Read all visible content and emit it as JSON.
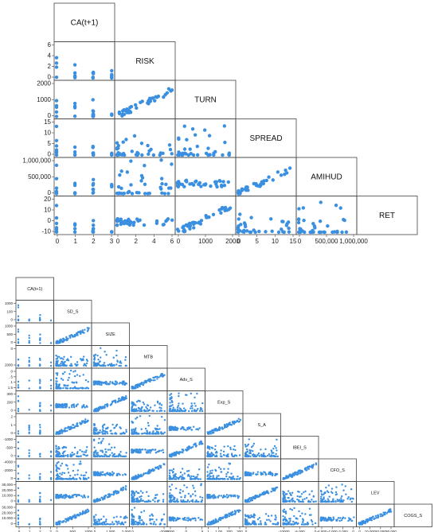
{
  "chart_data": [
    {
      "type": "scatter",
      "title": "",
      "variables": [
        "CA(t+1)",
        "RISK",
        "TURN",
        "SPREAD",
        "AMIHUD",
        "RET"
      ],
      "x_ticks": [
        [
          "0",
          "1",
          "2",
          "3"
        ],
        [
          "0",
          "2",
          "4",
          "6"
        ],
        [
          "0",
          "1000",
          "2000"
        ],
        [
          "0",
          "5",
          "10",
          "15"
        ],
        [
          "0",
          "500,000",
          "1,000,000"
        ]
      ],
      "y_ticks": [
        [
          "0",
          "2",
          "4",
          "6"
        ],
        [
          "0",
          "1000",
          "2000"
        ],
        [
          "0",
          "5",
          "10",
          "15"
        ],
        [
          "0",
          "500,000",
          "1,000,000"
        ],
        [
          "-10",
          "0",
          "10",
          "20"
        ]
      ],
      "ranges": [
        [
          -0.1,
          3
        ],
        [
          -0.3,
          6
        ],
        [
          -80,
          2400
        ],
        [
          -0.5,
          15
        ],
        [
          -30000,
          1000000
        ],
        [
          -12,
          22
        ]
      ]
    },
    {
      "type": "scatter",
      "title": "",
      "variables": [
        "CA(t+1)",
        "SD_S",
        "SIZE",
        "MTB",
        "Adv_S",
        "Exp_S",
        "S_A",
        "IBEI_S",
        "CFO_S",
        "LEV",
        "COGS_S"
      ],
      "x_ticks": [
        [
          "0",
          "1",
          "2",
          "3"
        ],
        [
          "0",
          "500",
          "1000"
        ],
        [
          "0",
          "1,000",
          "2,000"
        ],
        [
          "0",
          "-2000"
        ],
        [
          "2000",
          "0",
          ".5"
        ],
        [
          "1",
          "1.00",
          "200",
          "300"
        ],
        [
          "0"
        ],
        [
          "-10000",
          "-5,000",
          "0"
        ],
        [
          "-6,000",
          "-4,000",
          "-2,000",
          "0"
        ],
        [
          "0",
          "10,000",
          "20,000",
          "30,000"
        ]
      ],
      "y_ticks": [
        [
          "0",
          "100",
          "1000"
        ],
        [
          "0",
          "500",
          "1000"
        ],
        [
          "2000",
          "0"
        ],
        [
          "1.5",
          "1",
          ".5",
          "0"
        ],
        [
          "0",
          "200",
          "300"
        ],
        [
          "0",
          "1",
          "2"
        ],
        [
          "0",
          "-500",
          "-1000"
        ],
        [
          "0",
          "-2000",
          "-4000"
        ],
        [
          "0",
          "10,000",
          "20,000",
          "30,000"
        ],
        [
          "0",
          "10,000",
          "20,000",
          "30,000"
        ]
      ],
      "ranges": [
        [
          0,
          3
        ],
        [
          0,
          1200
        ],
        [
          0,
          2500
        ],
        [
          -2500,
          500
        ],
        [
          0,
          1
        ],
        [
          0,
          350
        ],
        [
          0,
          2
        ],
        [
          -10000,
          0
        ],
        [
          -6000,
          0
        ],
        [
          0,
          35000
        ],
        [
          0,
          3
        ]
      ]
    }
  ]
}
